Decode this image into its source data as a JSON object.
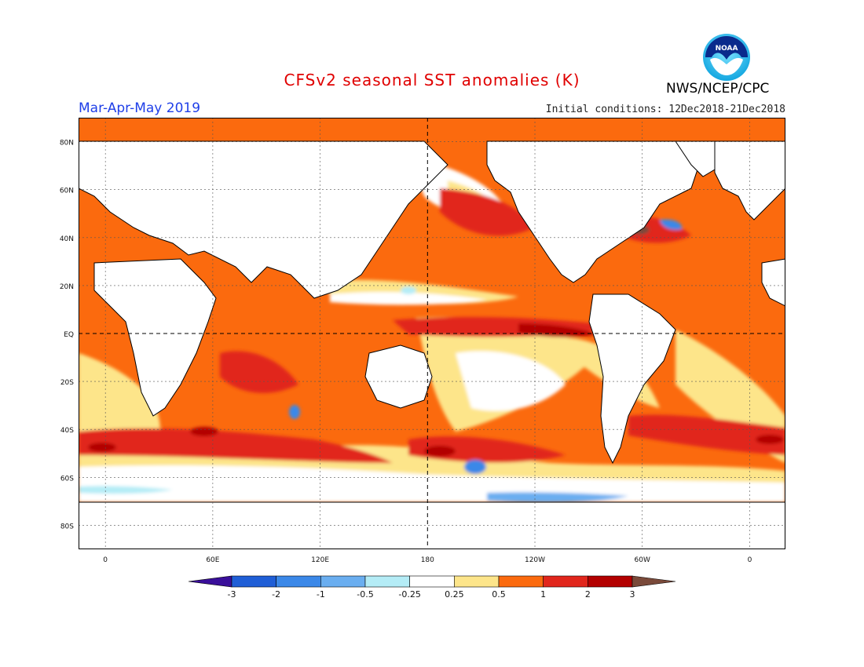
{
  "header": {
    "title": "CFSv2 seasonal SST anomalies (K)",
    "season": "Mar-Apr-May 2019",
    "initial_conditions": "Initial conditions: 12Dec2018-21Dec2018",
    "agency": "NWS/NCEP/CPC",
    "logo_text": "NOAA"
  },
  "map": {
    "lat_labels": [
      "80N",
      "60N",
      "40N",
      "20N",
      "EQ",
      "20S",
      "40S",
      "60S",
      "80S"
    ],
    "lon_labels": [
      "0",
      "60E",
      "120E",
      "180",
      "120W",
      "60W",
      "0"
    ],
    "lat_range": [
      -90,
      90
    ],
    "lon_range": [
      -15,
      380
    ]
  },
  "colorbar": {
    "labels": [
      "-3",
      "-2",
      "-1",
      "-0.5",
      "-0.25",
      "0.25",
      "0.5",
      "1",
      "2",
      "3"
    ],
    "colors": [
      "#3a0f9a",
      "#1f5ed6",
      "#3b88e8",
      "#6aaef0",
      "#b4ecf6",
      "#ffffff",
      "#fde58a",
      "#fb6a0e",
      "#e1261c",
      "#b30000",
      "#7a4a3a"
    ]
  }
}
